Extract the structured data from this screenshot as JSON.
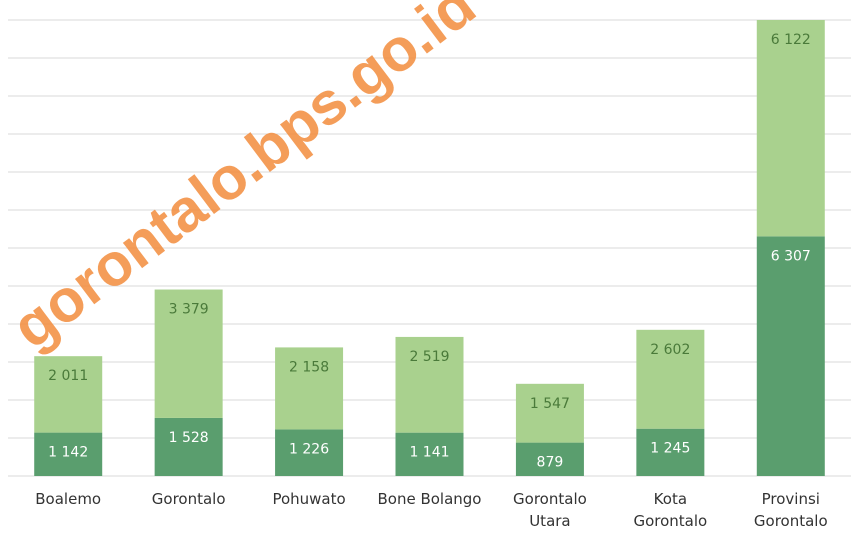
{
  "chart_data": {
    "type": "stacked_bar",
    "categories": [
      "Boalemo",
      "Gorontalo",
      "Pohuwato",
      "Bone Bolango",
      "Gorontalo\nUtara",
      "Kota\nGorontalo",
      "Provinsi\nGorontalo"
    ],
    "series": [
      {
        "color": "#5a9e6e",
        "values": [
          1142,
          1528,
          1226,
          1141,
          879,
          1245,
          6307
        ],
        "value_labels": [
          "1 142",
          "1 528",
          "1 226",
          "1 141",
          "879",
          "1 245",
          "6 307"
        ]
      },
      {
        "color": "#a9d18e",
        "values": [
          2011,
          3379,
          2158,
          2519,
          1547,
          2602,
          6122
        ],
        "value_labels": [
          "2 011",
          "3 379",
          "2 158",
          "2 519",
          "1 547",
          "2 602",
          "6 122"
        ]
      }
    ],
    "ylim": [
      0,
      12000
    ],
    "yticks": [
      0,
      1000,
      2000,
      3000,
      4000,
      5000,
      6000,
      7000,
      8000,
      9000,
      10000,
      11000,
      12000
    ],
    "grid": true,
    "watermark": "gorontalo.bps.go.id"
  }
}
